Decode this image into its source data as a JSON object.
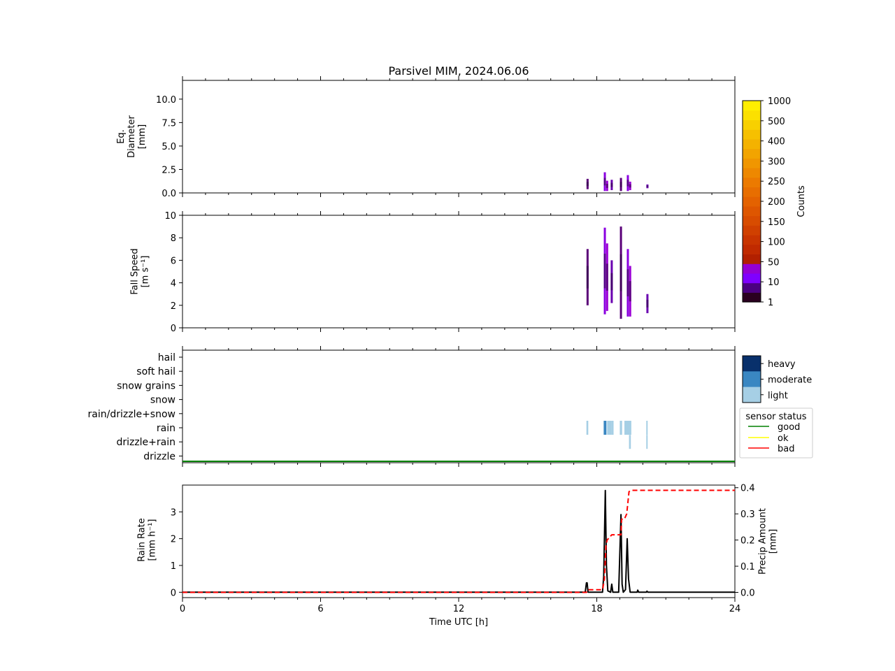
{
  "chart_data": {
    "title": "Parsivel MIM, 2024.06.06",
    "xlabel": "Time UTC [h]",
    "xlim": [
      0,
      24
    ],
    "xticks": [
      0,
      6,
      12,
      18,
      24
    ],
    "xtick_labels": [
      "0",
      "6",
      "12",
      "18",
      "24"
    ],
    "panels": [
      {
        "type": "heatmap",
        "ylabel": [
          "Eq.",
          "Diameter",
          "[mm]"
        ],
        "ylim": [
          0,
          12
        ],
        "yticks": [
          0.0,
          2.5,
          5.0,
          7.5,
          10.0
        ],
        "ytick_labels": [
          "0.0",
          "2.5",
          "5.0",
          "7.5",
          "10.0"
        ],
        "events": [
          {
            "t": 17.6,
            "ymin": 0.4,
            "ymax": 1.5
          },
          {
            "t": 18.35,
            "ymin": 0.2,
            "ymax": 2.2
          },
          {
            "t": 18.45,
            "ymin": 0.2,
            "ymax": 1.3
          },
          {
            "t": 18.65,
            "ymin": 0.3,
            "ymax": 1.4
          },
          {
            "t": 19.05,
            "ymin": 0.2,
            "ymax": 1.6
          },
          {
            "t": 19.35,
            "ymin": 0.2,
            "ymax": 1.9
          },
          {
            "t": 19.45,
            "ymin": 0.3,
            "ymax": 1.2
          },
          {
            "t": 20.2,
            "ymin": 0.5,
            "ymax": 0.9
          }
        ]
      },
      {
        "type": "heatmap",
        "ylabel": [
          "Fall Speed",
          "[m s⁻¹]"
        ],
        "ylim": [
          0,
          10
        ],
        "yticks": [
          0,
          2,
          4,
          6,
          8,
          10
        ],
        "ytick_labels": [
          "0",
          "2",
          "4",
          "6",
          "8",
          "10"
        ],
        "events": [
          {
            "t": 17.6,
            "ymin": 2.0,
            "ymax": 7.0
          },
          {
            "t": 18.35,
            "ymin": 1.2,
            "ymax": 8.9
          },
          {
            "t": 18.45,
            "ymin": 1.5,
            "ymax": 7.5
          },
          {
            "t": 18.65,
            "ymin": 2.2,
            "ymax": 6.0
          },
          {
            "t": 19.05,
            "ymin": 0.8,
            "ymax": 9.0
          },
          {
            "t": 19.35,
            "ymin": 1.0,
            "ymax": 7.0
          },
          {
            "t": 19.45,
            "ymin": 1.0,
            "ymax": 5.5
          },
          {
            "t": 20.2,
            "ymin": 1.3,
            "ymax": 3.0
          }
        ]
      },
      {
        "type": "categorical",
        "categories": [
          "hail",
          "soft hail",
          "snow grains",
          "snow",
          "rain/drizzle+snow",
          "rain",
          "drizzle+rain",
          "drizzle"
        ],
        "events": [
          {
            "t": 17.55,
            "w": 0.08,
            "cat": "rain",
            "level": "light"
          },
          {
            "t": 18.3,
            "w": 0.12,
            "cat": "rain",
            "level": "moderate"
          },
          {
            "t": 18.45,
            "w": 0.2,
            "cat": "rain",
            "level": "light"
          },
          {
            "t": 18.65,
            "w": 0.08,
            "cat": "rain",
            "level": "light"
          },
          {
            "t": 19.0,
            "w": 0.1,
            "cat": "rain",
            "level": "light"
          },
          {
            "t": 19.2,
            "w": 0.3,
            "cat": "rain",
            "level": "light"
          },
          {
            "t": 19.4,
            "w": 0.08,
            "cat": "drizzle+rain",
            "level": "light"
          },
          {
            "t": 20.15,
            "w": 0.06,
            "cat": "rain",
            "level": "light"
          },
          {
            "t": 20.15,
            "w": 0.06,
            "cat": "drizzle+rain",
            "level": "light"
          }
        ],
        "sensor_status_value": "good"
      },
      {
        "type": "line",
        "ylabel_left": [
          "Rain Rate",
          "[mm h⁻¹]"
        ],
        "ylabel_right": [
          "Precip Amount",
          "[mm]"
        ],
        "ylim_left": [
          -0.2,
          4.0
        ],
        "yticks_left": [
          0,
          1,
          2,
          3
        ],
        "ylim_right": [
          -0.02,
          0.41
        ],
        "yticks_right": [
          0.0,
          0.1,
          0.2,
          0.3,
          0.4
        ],
        "ytick_labels_right": [
          "0.0",
          "0.1",
          "0.2",
          "0.3",
          "0.4"
        ],
        "series": [
          {
            "color": "#000000",
            "x": [
              0,
              17.5,
              17.55,
              17.58,
              17.62,
              17.7,
              18.25,
              18.3,
              18.37,
              18.42,
              18.48,
              18.6,
              18.65,
              18.7,
              18.8,
              18.95,
              19.05,
              19.1,
              19.15,
              19.25,
              19.32,
              19.38,
              19.45,
              19.55,
              19.75,
              19.78,
              19.82,
              20.15,
              20.18,
              20.22,
              24
            ],
            "y": [
              0,
              0,
              0.35,
              0.35,
              0,
              0,
              0,
              0.6,
              3.8,
              1.0,
              0.05,
              0,
              0.3,
              0,
              0,
              0,
              2.9,
              0.3,
              0,
              0.1,
              2.0,
              0.5,
              0,
              0,
              0,
              0.08,
              0,
              0,
              0.04,
              0,
              0
            ]
          },
          {
            "color": "#ff0000",
            "dashed": true,
            "axis": "right",
            "x": [
              0,
              17.55,
              17.6,
              18.25,
              18.33,
              18.4,
              18.45,
              18.55,
              18.65,
              18.75,
              19.05,
              19.08,
              19.2,
              19.3,
              19.4,
              19.5,
              24
            ],
            "y": [
              0,
              0,
              0.01,
              0.01,
              0.05,
              0.18,
              0.2,
              0.21,
              0.22,
              0.22,
              0.22,
              0.28,
              0.28,
              0.3,
              0.385,
              0.39,
              0.39
            ]
          }
        ]
      }
    ],
    "colorbar": {
      "label": "Counts",
      "tick_labels": [
        "1",
        "10",
        "50",
        "100",
        "150",
        "200",
        "250",
        "300",
        "400",
        "500",
        "1000"
      ],
      "colors": [
        "#2a0020",
        "#4b0082",
        "#7f00ff",
        "#9400d3",
        "#b22000",
        "#c02a00",
        "#c83400",
        "#d04000",
        "#d84c00",
        "#de5600",
        "#e46200",
        "#e86e00",
        "#ec7a00",
        "#ee8800",
        "#f09600",
        "#f2a400",
        "#f4b200",
        "#f6c000",
        "#f8d000",
        "#fbe000",
        "#ffee00"
      ]
    },
    "intensity_legend": [
      {
        "label": "heavy",
        "color": "#08306b"
      },
      {
        "label": "moderate",
        "color": "#3a87c2"
      },
      {
        "label": "light",
        "color": "#a6cfe5"
      }
    ],
    "sensor_status_legend": {
      "title": "sensor status",
      "items": [
        {
          "label": "good",
          "color": "#008000"
        },
        {
          "label": "ok",
          "color": "#ffff00"
        },
        {
          "label": "bad",
          "color": "#ff0000"
        }
      ]
    }
  }
}
